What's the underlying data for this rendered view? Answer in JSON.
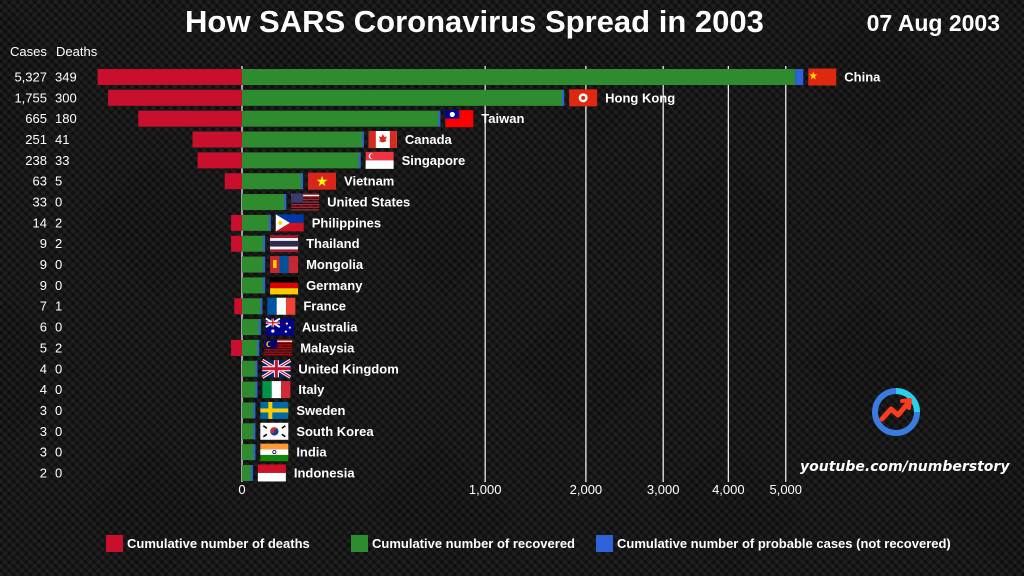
{
  "title": "How SARS Coronavirus Spread in 2003",
  "date": "07 Aug 2003",
  "columns": {
    "cases": "Cases",
    "deaths": "Deaths"
  },
  "watermark": "youtube.com/numberstory",
  "colors": {
    "deaths": "#c8102e",
    "recovered": "#2e8b2e",
    "probable": "#2f62d9"
  },
  "legend": [
    {
      "label": "Cumulative number of deaths",
      "color": "#c8102e"
    },
    {
      "label": "Cumulative number of recovered",
      "color": "#2e8b2e"
    },
    {
      "label": "Cumulative number of probable cases (not recovered)",
      "color": "#2f62d9"
    }
  ],
  "chart_data": {
    "type": "bar",
    "orientation": "horizontal",
    "scale": "sqrt",
    "xlim": [
      0,
      5000
    ],
    "xticks": [
      0,
      1000,
      2000,
      3000,
      4000,
      5000
    ],
    "xtick_labels": [
      "0",
      "1,000",
      "2,000",
      "3,000",
      "4,000",
      "5,000"
    ],
    "grid": true,
    "rows": [
      {
        "country": "China",
        "cases": 5327,
        "cases_label": "5,327",
        "deaths": 349,
        "probable": 150,
        "flag": "china-flag"
      },
      {
        "country": "Hong Kong",
        "cases": 1755,
        "cases_label": "1,755",
        "deaths": 300,
        "probable": 0,
        "flag": "hong-kong-flag"
      },
      {
        "country": "Taiwan",
        "cases": 665,
        "cases_label": "665",
        "deaths": 180,
        "probable": 0,
        "flag": "taiwan-flag"
      },
      {
        "country": "Canada",
        "cases": 251,
        "cases_label": "251",
        "deaths": 41,
        "probable": 0,
        "flag": "canada-flag"
      },
      {
        "country": "Singapore",
        "cases": 238,
        "cases_label": "238",
        "deaths": 33,
        "probable": 0,
        "flag": "singapore-flag"
      },
      {
        "country": "Vietnam",
        "cases": 63,
        "cases_label": "63",
        "deaths": 5,
        "probable": 0,
        "flag": "vietnam-flag"
      },
      {
        "country": "United States",
        "cases": 33,
        "cases_label": "33",
        "deaths": 0,
        "probable": 0,
        "flag": "united-states-flag"
      },
      {
        "country": "Philippines",
        "cases": 14,
        "cases_label": "14",
        "deaths": 2,
        "probable": 0,
        "flag": "philippines-flag"
      },
      {
        "country": "Thailand",
        "cases": 9,
        "cases_label": "9",
        "deaths": 2,
        "probable": 0,
        "flag": "thailand-flag"
      },
      {
        "country": "Mongolia",
        "cases": 9,
        "cases_label": "9",
        "deaths": 0,
        "probable": 0,
        "flag": "mongolia-flag"
      },
      {
        "country": "Germany",
        "cases": 9,
        "cases_label": "9",
        "deaths": 0,
        "probable": 0,
        "flag": "germany-flag"
      },
      {
        "country": "France",
        "cases": 7,
        "cases_label": "7",
        "deaths": 1,
        "probable": 0,
        "flag": "france-flag"
      },
      {
        "country": "Australia",
        "cases": 6,
        "cases_label": "6",
        "deaths": 0,
        "probable": 0,
        "flag": "australia-flag"
      },
      {
        "country": "Malaysia",
        "cases": 5,
        "cases_label": "5",
        "deaths": 2,
        "probable": 0,
        "flag": "malaysia-flag"
      },
      {
        "country": "United Kingdom",
        "cases": 4,
        "cases_label": "4",
        "deaths": 0,
        "probable": 0,
        "flag": "united-kingdom-flag"
      },
      {
        "country": "Italy",
        "cases": 4,
        "cases_label": "4",
        "deaths": 0,
        "probable": 0,
        "flag": "italy-flag"
      },
      {
        "country": "Sweden",
        "cases": 3,
        "cases_label": "3",
        "deaths": 0,
        "probable": 0,
        "flag": "sweden-flag"
      },
      {
        "country": "South Korea",
        "cases": 3,
        "cases_label": "3",
        "deaths": 0,
        "probable": 0,
        "flag": "south-korea-flag"
      },
      {
        "country": "India",
        "cases": 3,
        "cases_label": "3",
        "deaths": 0,
        "probable": 0,
        "flag": "india-flag"
      },
      {
        "country": "Indonesia",
        "cases": 2,
        "cases_label": "2",
        "deaths": 0,
        "probable": 0,
        "flag": "indonesia-flag"
      }
    ]
  }
}
